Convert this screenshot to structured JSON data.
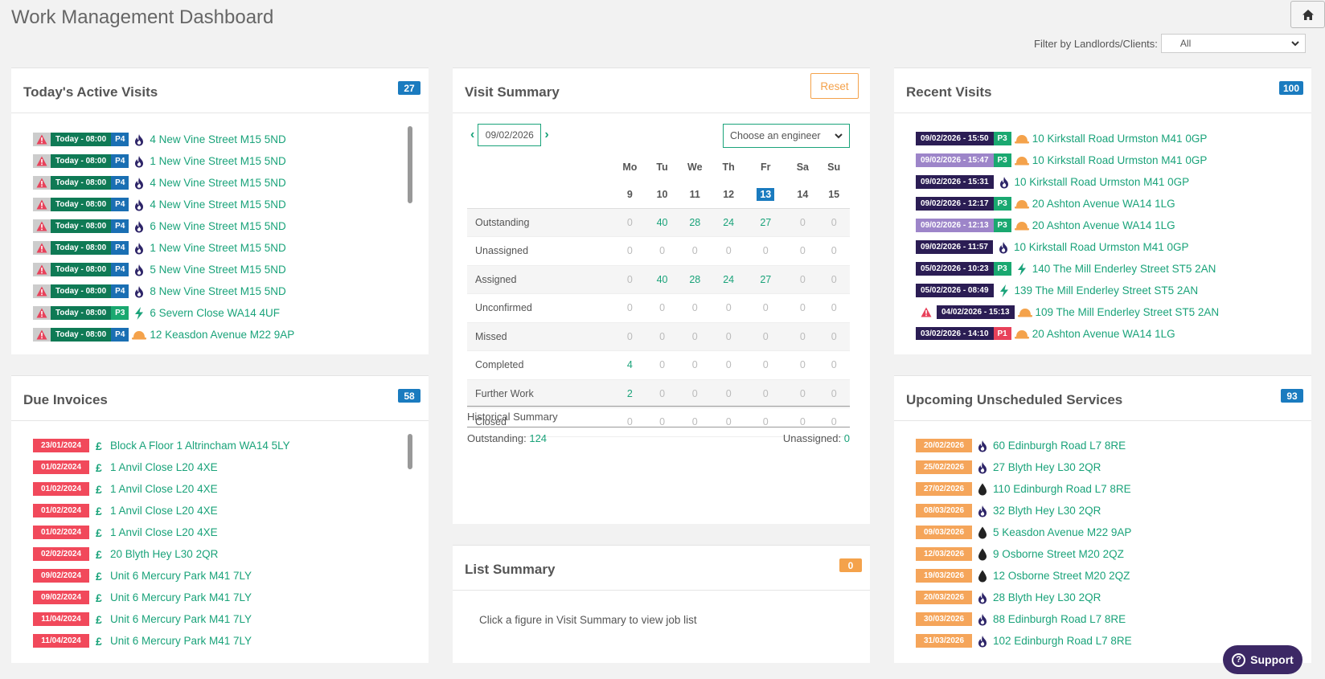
{
  "page": {
    "title": "Work Management Dashboard"
  },
  "filter": {
    "label": "Filter by Landlords/Clients:",
    "value": "All"
  },
  "active_visits": {
    "title": "Today's Active Visits",
    "count": "27",
    "rows": [
      {
        "alert": true,
        "time": "Today - 08:00",
        "priority": "P4",
        "icon": "flame-icon",
        "address": "4 New Vine Street M15 5ND"
      },
      {
        "alert": true,
        "time": "Today - 08:00",
        "priority": "P4",
        "icon": "flame-icon",
        "address": "1 New Vine Street M15 5ND"
      },
      {
        "alert": true,
        "time": "Today - 08:00",
        "priority": "P4",
        "icon": "flame-icon",
        "address": "4 New Vine Street M15 5ND"
      },
      {
        "alert": true,
        "time": "Today - 08:00",
        "priority": "P4",
        "icon": "flame-icon",
        "address": "4 New Vine Street M15 5ND"
      },
      {
        "alert": true,
        "time": "Today - 08:00",
        "priority": "P4",
        "icon": "flame-icon",
        "address": "6 New Vine Street M15 5ND"
      },
      {
        "alert": true,
        "time": "Today - 08:00",
        "priority": "P4",
        "icon": "flame-icon",
        "address": "1 New Vine Street M15 5ND"
      },
      {
        "alert": true,
        "time": "Today - 08:00",
        "priority": "P4",
        "icon": "flame-icon",
        "address": "5 New Vine Street M15 5ND"
      },
      {
        "alert": true,
        "time": "Today - 08:00",
        "priority": "P4",
        "icon": "flame-icon",
        "address": "8 New Vine Street M15 5ND"
      },
      {
        "alert": true,
        "time": "Today - 08:00",
        "priority": "P3",
        "icon": "lightning-icon",
        "address": "6 Severn Close WA14 4UF"
      },
      {
        "alert": true,
        "time": "Today - 08:00",
        "priority": "P4",
        "icon": "hardhat-icon",
        "address": "12 Keasdon Avenue M22 9AP"
      }
    ]
  },
  "due_invoices": {
    "title": "Due Invoices",
    "count": "58",
    "rows": [
      {
        "date": "23/01/2024",
        "address": "Block A Floor 1 Altrincham WA14 5LY"
      },
      {
        "date": "01/02/2024",
        "address": "1 Anvil Close L20 4XE"
      },
      {
        "date": "01/02/2024",
        "address": "1 Anvil Close L20 4XE"
      },
      {
        "date": "01/02/2024",
        "address": "1 Anvil Close L20 4XE"
      },
      {
        "date": "01/02/2024",
        "address": "1 Anvil Close L20 4XE"
      },
      {
        "date": "02/02/2024",
        "address": "20 Blyth Hey L30 2QR"
      },
      {
        "date": "09/02/2024",
        "address": "Unit 6 Mercury Park M41 7LY"
      },
      {
        "date": "09/02/2024",
        "address": "Unit 6 Mercury Park M41 7LY"
      },
      {
        "date": "11/04/2024",
        "address": "Unit 6 Mercury Park M41 7LY"
      },
      {
        "date": "11/04/2024",
        "address": "Unit 6 Mercury Park M41 7LY"
      }
    ]
  },
  "visit_summary": {
    "title": "Visit Summary",
    "reset_label": "Reset",
    "date": "09/02/2026",
    "engineer_placeholder": "Choose an engineer",
    "days": [
      "Mo",
      "Tu",
      "We",
      "Th",
      "Fr",
      "Sa",
      "Su"
    ],
    "dates": [
      "9",
      "10",
      "11",
      "12",
      "13",
      "14",
      "15"
    ],
    "today_index": 4,
    "rows": [
      {
        "label": "Outstanding",
        "values": [
          "0",
          "40",
          "28",
          "24",
          "27",
          "0",
          "0"
        ]
      },
      {
        "label": "Unassigned",
        "values": [
          "0",
          "0",
          "0",
          "0",
          "0",
          "0",
          "0"
        ]
      },
      {
        "label": "Assigned",
        "values": [
          "0",
          "40",
          "28",
          "24",
          "27",
          "0",
          "0"
        ]
      },
      {
        "label": "Unconfirmed",
        "values": [
          "0",
          "0",
          "0",
          "0",
          "0",
          "0",
          "0"
        ]
      },
      {
        "label": "Missed",
        "values": [
          "0",
          "0",
          "0",
          "0",
          "0",
          "0",
          "0"
        ]
      },
      {
        "label": "Completed",
        "values": [
          "4",
          "0",
          "0",
          "0",
          "0",
          "0",
          "0"
        ]
      },
      {
        "label": "Further Work",
        "values": [
          "2",
          "0",
          "0",
          "0",
          "0",
          "0",
          "0"
        ]
      },
      {
        "label": "Closed",
        "values": [
          "0",
          "0",
          "0",
          "0",
          "0",
          "0",
          "0"
        ]
      }
    ],
    "historical_title": "Historical Summary",
    "outstanding_label": "Outstanding:",
    "outstanding_value": "124",
    "unassigned_label": "Unassigned:",
    "unassigned_value": "0"
  },
  "list_summary": {
    "title": "List Summary",
    "count": "0",
    "message": "Click a figure in Visit Summary to view job list"
  },
  "recent_visits": {
    "title": "Recent Visits",
    "count": "100",
    "rows": [
      {
        "alert": false,
        "time": "09/02/2026 - 15:50",
        "style": "navy",
        "priority": "P3",
        "icon": "hardhat-icon",
        "address": "10 Kirkstall Road Urmston M41 0GP"
      },
      {
        "alert": false,
        "time": "09/02/2026 - 15:47",
        "style": "lilac",
        "priority": "P3",
        "icon": "hardhat-icon",
        "address": "10 Kirkstall Road Urmston M41 0GP"
      },
      {
        "alert": false,
        "time": "09/02/2026 - 15:31",
        "style": "navy",
        "priority": "",
        "icon": "flame-icon",
        "address": "10 Kirkstall Road Urmston M41 0GP"
      },
      {
        "alert": false,
        "time": "09/02/2026 - 12:17",
        "style": "navy",
        "priority": "P3",
        "icon": "hardhat-icon",
        "address": "20 Ashton Avenue WA14 1LG"
      },
      {
        "alert": false,
        "time": "09/02/2026 - 12:13",
        "style": "lilac",
        "priority": "P3",
        "icon": "hardhat-icon",
        "address": "20 Ashton Avenue WA14 1LG"
      },
      {
        "alert": false,
        "time": "09/02/2026 - 11:57",
        "style": "navy",
        "priority": "",
        "icon": "flame-icon",
        "address": "10 Kirkstall Road Urmston M41 0GP"
      },
      {
        "alert": false,
        "time": "05/02/2026 - 10:23",
        "style": "navy",
        "priority": "P3",
        "icon": "lightning-icon",
        "address": "140 The Mill Enderley Street ST5 2AN"
      },
      {
        "alert": false,
        "time": "05/02/2026 - 08:49",
        "style": "navy",
        "priority": "",
        "icon": "lightning-icon",
        "address": "139 The Mill Enderley Street ST5 2AN"
      },
      {
        "alert": true,
        "time": "04/02/2026 - 15:13",
        "style": "navy",
        "priority": "",
        "icon": "hardhat-icon",
        "address": "109 The Mill Enderley Street ST5 2AN"
      },
      {
        "alert": false,
        "time": "03/02/2026 - 14:10",
        "style": "navy",
        "priority": "P1",
        "icon": "hardhat-icon",
        "address": "20 Ashton Avenue WA14 1LG"
      }
    ]
  },
  "unscheduled": {
    "title": "Upcoming Unscheduled Services",
    "count": "93",
    "rows": [
      {
        "date": "20/02/2026",
        "icon": "flame-icon",
        "address": "60 Edinburgh Road L7 8RE"
      },
      {
        "date": "25/02/2026",
        "icon": "flame-icon",
        "address": "27 Blyth Hey L30 2QR"
      },
      {
        "date": "27/02/2026",
        "icon": "oil-drop-icon",
        "address": "110 Edinburgh Road L7 8RE"
      },
      {
        "date": "08/03/2026",
        "icon": "flame-icon",
        "address": "32 Blyth Hey L30 2QR"
      },
      {
        "date": "09/03/2026",
        "icon": "oil-drop-icon",
        "address": "5 Keasdon Avenue M22 9AP"
      },
      {
        "date": "12/03/2026",
        "icon": "oil-drop-icon",
        "address": "9 Osborne Street M20 2QZ"
      },
      {
        "date": "19/03/2026",
        "icon": "oil-drop-icon",
        "address": "12 Osborne Street M20 2QZ"
      },
      {
        "date": "20/03/2026",
        "icon": "flame-icon",
        "address": "28 Blyth Hey L30 2QR"
      },
      {
        "date": "30/03/2026",
        "icon": "flame-icon",
        "address": "88 Edinburgh Road L7 8RE"
      },
      {
        "date": "31/03/2026",
        "icon": "flame-icon",
        "address": "102 Edinburgh Road L7 8RE"
      }
    ]
  },
  "support": {
    "label": "Support"
  },
  "colors": {
    "accent": "#1aa37a",
    "badge": "#1a7bbf",
    "invoice_red": "#f1495b",
    "service_orange": "#f5a55a",
    "navy": "#2b1d54"
  }
}
